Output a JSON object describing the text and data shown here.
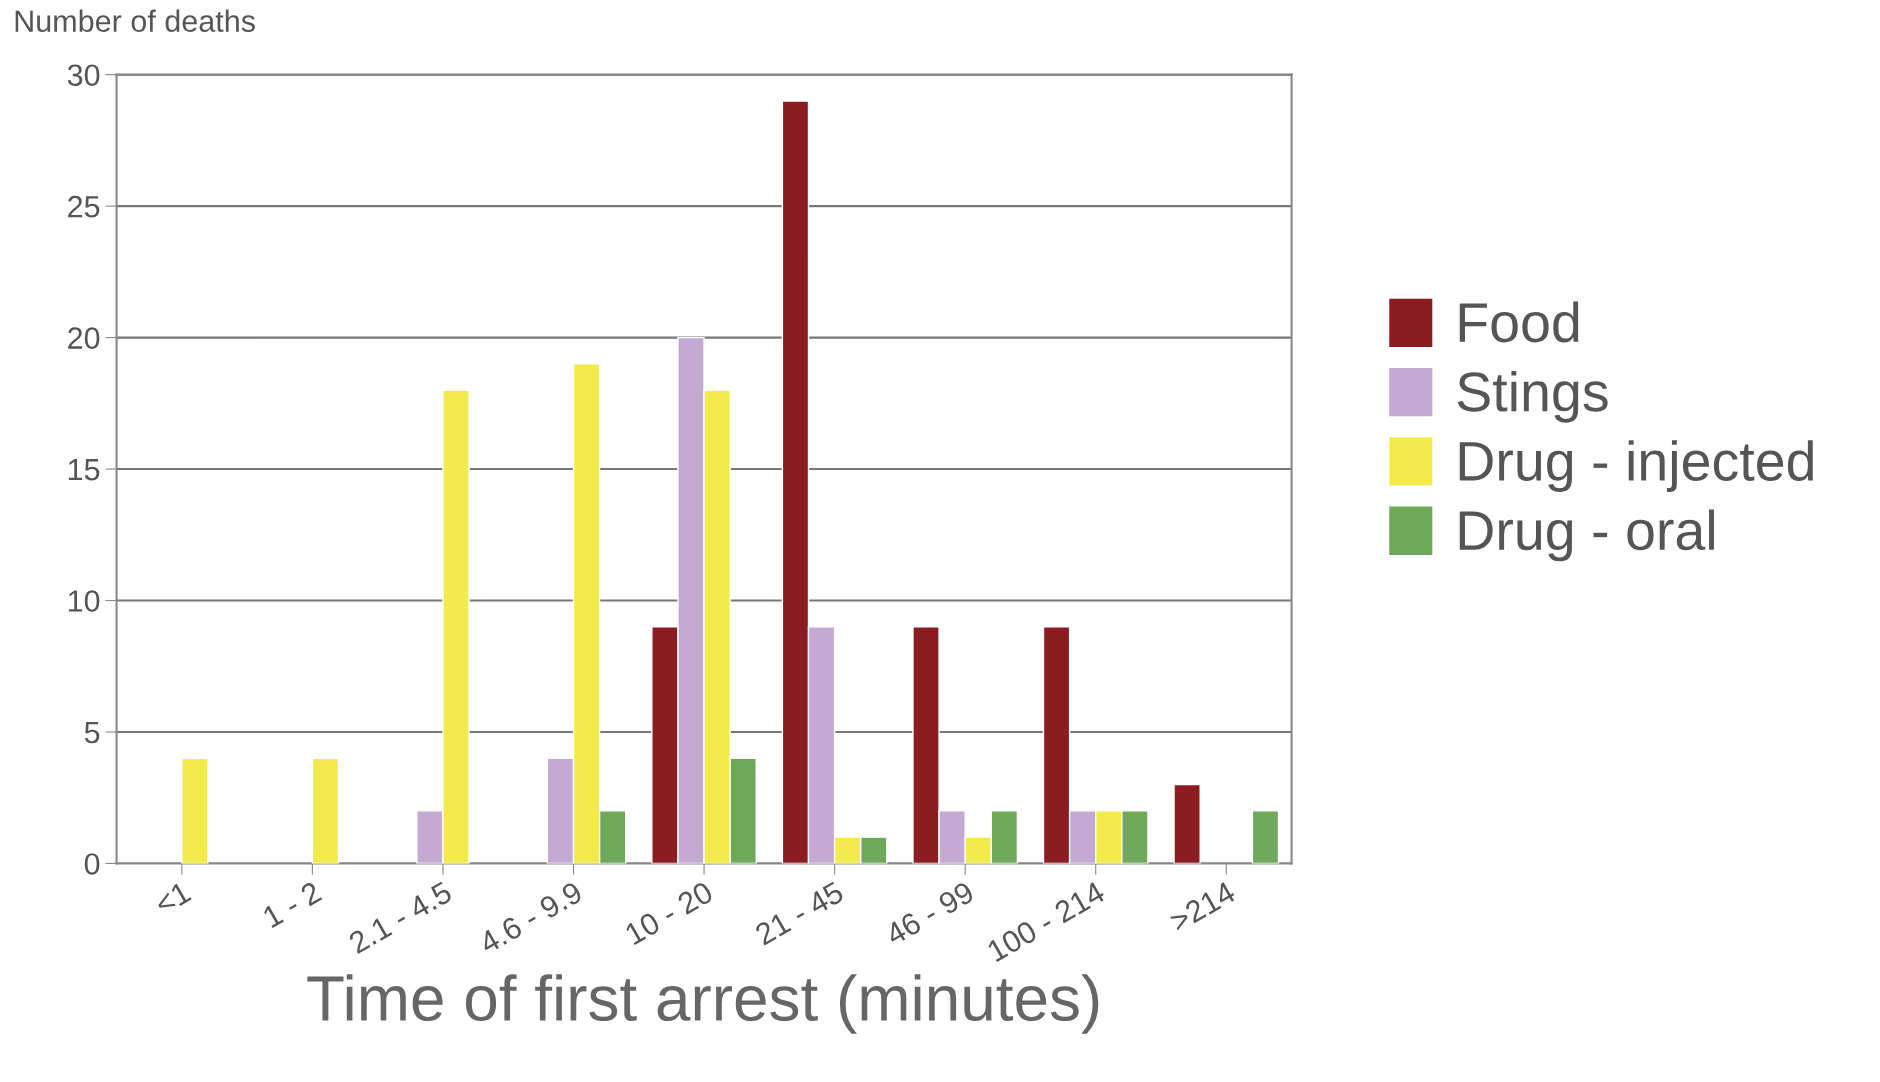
{
  "chart_data": {
    "type": "bar",
    "ylabel": "Number of deaths",
    "xlabel": "Time of first arrest (minutes)",
    "categories": [
      "<1",
      "1 - 2",
      "2.1 - 4.5",
      "4.6 - 9.9",
      "10 - 20",
      "21 - 45",
      "46 - 99",
      "100 - 214",
      ">214"
    ],
    "series": [
      {
        "name": "Food",
        "color": "#8b1c20",
        "values": [
          null,
          null,
          null,
          null,
          9,
          29,
          9,
          9,
          3
        ]
      },
      {
        "name": "Stings",
        "color": "#c4a9d2",
        "values": [
          null,
          null,
          2,
          4,
          20,
          9,
          2,
          2,
          null
        ]
      },
      {
        "name": "Drug - injected",
        "color": "#f3ea4c",
        "values": [
          4,
          4,
          18,
          19,
          18,
          1,
          1,
          2,
          null
        ]
      },
      {
        "name": "Drug - oral",
        "color": "#70a85b",
        "values": [
          null,
          null,
          null,
          2,
          4,
          1,
          2,
          2,
          2
        ]
      }
    ],
    "ylim": [
      0,
      30
    ],
    "yticks": [
      0,
      5,
      10,
      15,
      20,
      25,
      30
    ],
    "grid": "y",
    "legend": "right"
  }
}
